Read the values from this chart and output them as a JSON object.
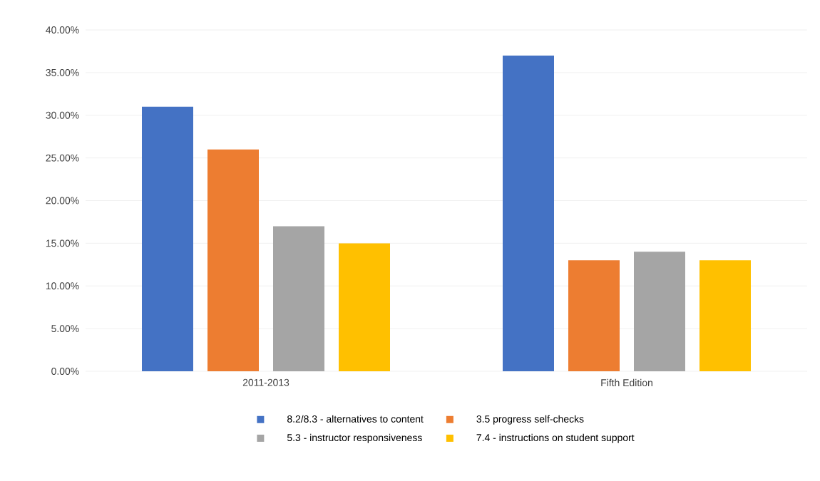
{
  "chart_data": {
    "type": "bar",
    "categories": [
      "2011-2013",
      "Fifth Edition"
    ],
    "series": [
      {
        "name": "8.2/8.3 - alternatives to content",
        "color": "#4472c4",
        "values": [
          31,
          37
        ]
      },
      {
        "name": "3.5 progress self-checks",
        "color": "#ed7d31",
        "values": [
          26,
          13
        ]
      },
      {
        "name": "5.3 - instructor responsiveness",
        "color": "#a5a5a5",
        "values": [
          17,
          14
        ]
      },
      {
        "name": "7.4 - instructions on student support",
        "color": "#ffc000",
        "values": [
          15,
          13
        ]
      }
    ],
    "ylim": [
      0,
      40
    ],
    "yticks": [
      {
        "value": 0,
        "label": "0.00%"
      },
      {
        "value": 5,
        "label": "5.00%"
      },
      {
        "value": 10,
        "label": "10.00%"
      },
      {
        "value": 15,
        "label": "15.00%"
      },
      {
        "value": 20,
        "label": "20.00%"
      },
      {
        "value": 25,
        "label": "25.00%"
      },
      {
        "value": 30,
        "label": "30.00%"
      },
      {
        "value": 35,
        "label": "35.00%"
      },
      {
        "value": 40,
        "label": "40.00%"
      }
    ],
    "grid": "y",
    "legend": "bottom"
  }
}
